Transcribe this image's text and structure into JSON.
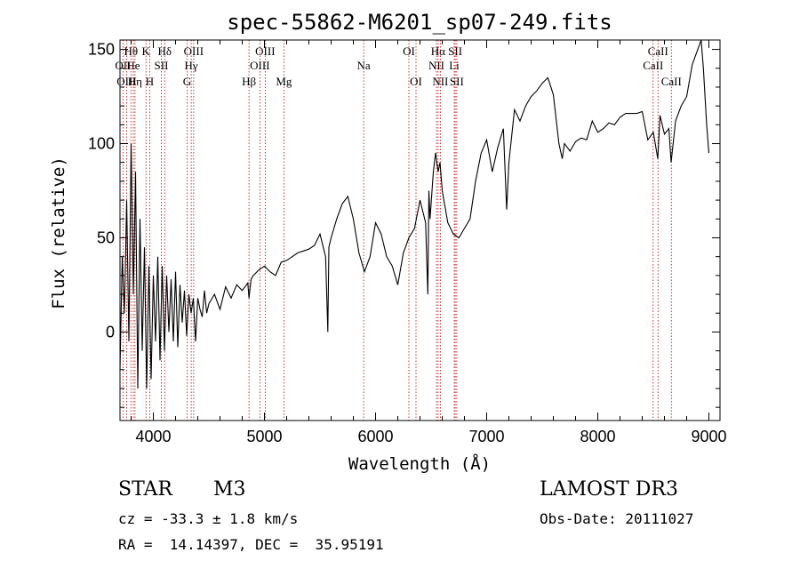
{
  "chart_data": {
    "type": "line",
    "title": "spec-55862-M6201_sp07-249.fits",
    "xlabel": "Wavelength (Å)",
    "ylabel": "Flux (relative)",
    "xlim": [
      3700,
      9100
    ],
    "ylim": [
      -47,
      155
    ],
    "xticks": [
      4000,
      5000,
      6000,
      7000,
      8000,
      9000
    ],
    "yticks": [
      0,
      50,
      100,
      150
    ],
    "xtick_labels": [
      "4000",
      "5000",
      "6000",
      "7000",
      "8000",
      "9000"
    ],
    "ytick_labels": [
      "0",
      "50",
      "100",
      "150"
    ],
    "series": [
      {
        "name": "flux",
        "x": [
          3700,
          3720,
          3740,
          3760,
          3780,
          3800,
          3820,
          3840,
          3860,
          3880,
          3900,
          3920,
          3940,
          3960,
          3980,
          4000,
          4020,
          4040,
          4060,
          4080,
          4100,
          4120,
          4140,
          4160,
          4180,
          4200,
          4220,
          4240,
          4260,
          4280,
          4300,
          4320,
          4340,
          4360,
          4380,
          4400,
          4420,
          4440,
          4460,
          4480,
          4500,
          4550,
          4600,
          4650,
          4700,
          4750,
          4800,
          4850,
          4861,
          4880,
          4900,
          4950,
          5000,
          5050,
          5100,
          5150,
          5200,
          5250,
          5300,
          5350,
          5400,
          5450,
          5500,
          5550,
          5570,
          5580,
          5600,
          5650,
          5700,
          5750,
          5800,
          5850,
          5900,
          5950,
          6000,
          6050,
          6100,
          6150,
          6200,
          6250,
          6300,
          6350,
          6400,
          6450,
          6470,
          6480,
          6490,
          6520,
          6540,
          6563,
          6580,
          6600,
          6650,
          6700,
          6750,
          6800,
          6850,
          6900,
          6950,
          7000,
          7050,
          7100,
          7150,
          7180,
          7200,
          7250,
          7300,
          7350,
          7400,
          7450,
          7500,
          7550,
          7600,
          7650,
          7680,
          7700,
          7750,
          7800,
          7850,
          7900,
          7950,
          8000,
          8050,
          8100,
          8150,
          8200,
          8250,
          8300,
          8350,
          8400,
          8450,
          8500,
          8540,
          8560,
          8600,
          8640,
          8660,
          8700,
          8750,
          8800,
          8850,
          8900,
          8930,
          8950,
          8980,
          9000
        ],
        "values": [
          -20,
          40,
          10,
          70,
          -5,
          100,
          20,
          85,
          -30,
          60,
          -10,
          45,
          -30,
          35,
          -25,
          30,
          -5,
          40,
          -15,
          35,
          -10,
          30,
          0,
          28,
          -5,
          32,
          -8,
          25,
          5,
          22,
          -2,
          20,
          10,
          18,
          -5,
          18,
          12,
          8,
          22,
          10,
          15,
          20,
          12,
          24,
          18,
          25,
          22,
          26,
          18,
          28,
          30,
          33,
          35,
          32,
          30,
          37,
          38,
          40,
          42,
          43,
          44,
          46,
          52,
          40,
          0,
          45,
          50,
          60,
          68,
          72,
          60,
          42,
          32,
          40,
          58,
          52,
          40,
          35,
          25,
          42,
          50,
          55,
          70,
          58,
          20,
          75,
          60,
          85,
          95,
          85,
          90,
          75,
          58,
          52,
          50,
          55,
          60,
          80,
          95,
          102,
          85,
          98,
          108,
          65,
          90,
          118,
          112,
          120,
          125,
          128,
          132,
          135,
          126,
          100,
          92,
          100,
          96,
          101,
          103,
          102,
          112,
          106,
          108,
          111,
          110,
          114,
          116,
          116,
          116,
          117,
          102,
          106,
          92,
          115,
          105,
          108,
          90,
          112,
          120,
          125,
          142,
          150,
          155,
          140,
          110,
          95
        ]
      }
    ],
    "spectral_lines": [
      {
        "label": "Hθ",
        "wavelength": 3798,
        "row": 1
      },
      {
        "label": "OII",
        "wavelength": 3727,
        "row": 2
      },
      {
        "label": "OIII",
        "wavelength": 3760,
        "row": 3
      },
      {
        "label": "He",
        "wavelength": 3820,
        "row": 2
      },
      {
        "label": "Hη",
        "wavelength": 3835,
        "row": 3
      },
      {
        "label": "K",
        "wavelength": 3934,
        "row": 1
      },
      {
        "label": "SII",
        "wavelength": 4072,
        "row": 2
      },
      {
        "label": "H",
        "wavelength": 3968,
        "row": 3
      },
      {
        "label": "Hδ",
        "wavelength": 4102,
        "row": 1
      },
      {
        "label": "OIII",
        "wavelength": 4363,
        "row": 1
      },
      {
        "label": "Hγ",
        "wavelength": 4341,
        "row": 2
      },
      {
        "label": "G",
        "wavelength": 4304,
        "row": 3
      },
      {
        "label": "OIII",
        "wavelength": 5007,
        "row": 1
      },
      {
        "label": "OIII",
        "wavelength": 4959,
        "row": 2
      },
      {
        "label": "Hβ",
        "wavelength": 4861,
        "row": 3
      },
      {
        "label": "Mg",
        "wavelength": 5175,
        "row": 3
      },
      {
        "label": "Na",
        "wavelength": 5893,
        "row": 2
      },
      {
        "label": "OI",
        "wavelength": 6300,
        "row": 1
      },
      {
        "label": "OI",
        "wavelength": 6364,
        "row": 3
      },
      {
        "label": "Hα",
        "wavelength": 6563,
        "row": 1
      },
      {
        "label": "NII",
        "wavelength": 6548,
        "row": 2
      },
      {
        "label": "NII",
        "wavelength": 6583,
        "row": 3
      },
      {
        "label": "SII",
        "wavelength": 6717,
        "row": 1
      },
      {
        "label": "Li",
        "wavelength": 6708,
        "row": 2
      },
      {
        "label": "SII",
        "wavelength": 6731,
        "row": 3
      },
      {
        "label": "CaII",
        "wavelength": 8542,
        "row": 1
      },
      {
        "label": "CaII",
        "wavelength": 8498,
        "row": 2
      },
      {
        "label": "CaII",
        "wavelength": 8662,
        "row": 3
      }
    ]
  },
  "info": {
    "class": "STAR",
    "subclass": "M3",
    "survey": "LAMOST DR3",
    "cz": "cz = -33.3 ± 1.8 km/s",
    "obs_date": "Obs-Date: 20111027",
    "coords": "RA =  14.14397, DEC =  35.95191"
  }
}
